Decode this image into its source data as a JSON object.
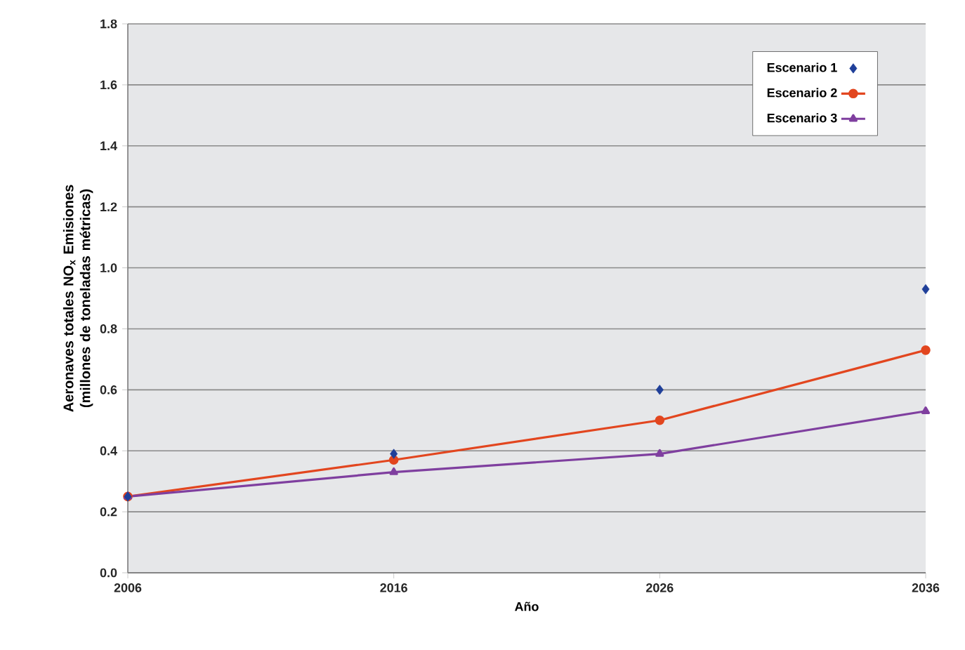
{
  "chart_data": {
    "type": "line",
    "xlabel": "Año",
    "ylabel": "Aeronaves totales NO$_{x}$ Emisiones (millones de toneladas métricas)",
    "x": [
      2006,
      2016,
      2026,
      2036
    ],
    "series": [
      {
        "name": "Escenario 1",
        "type": "scatter",
        "marker": "diamond",
        "color": "#1f3f99",
        "values": [
          0.25,
          0.39,
          0.6,
          0.93
        ]
      },
      {
        "name": "Escenario 2",
        "marker": "circle",
        "color": "#e2461f",
        "values": [
          0.25,
          0.37,
          0.5,
          0.73
        ]
      },
      {
        "name": "Escenario 3",
        "marker": "triangle",
        "color": "#7f3f9f",
        "values": [
          0.25,
          0.33,
          0.39,
          0.53
        ]
      }
    ],
    "xlim": [
      2006,
      2036
    ],
    "xticks": [
      2006,
      2016,
      2026,
      2036
    ],
    "ylim": [
      0,
      1.8
    ],
    "yticks": [
      {
        "value": 0,
        "label": "0.0"
      },
      0.2,
      0.4,
      0.6,
      0.8,
      {
        "value": 1.0,
        "label": "1.0"
      },
      1.2,
      1.4,
      1.6,
      1.8
    ],
    "grid": "y",
    "legend": "top right"
  }
}
